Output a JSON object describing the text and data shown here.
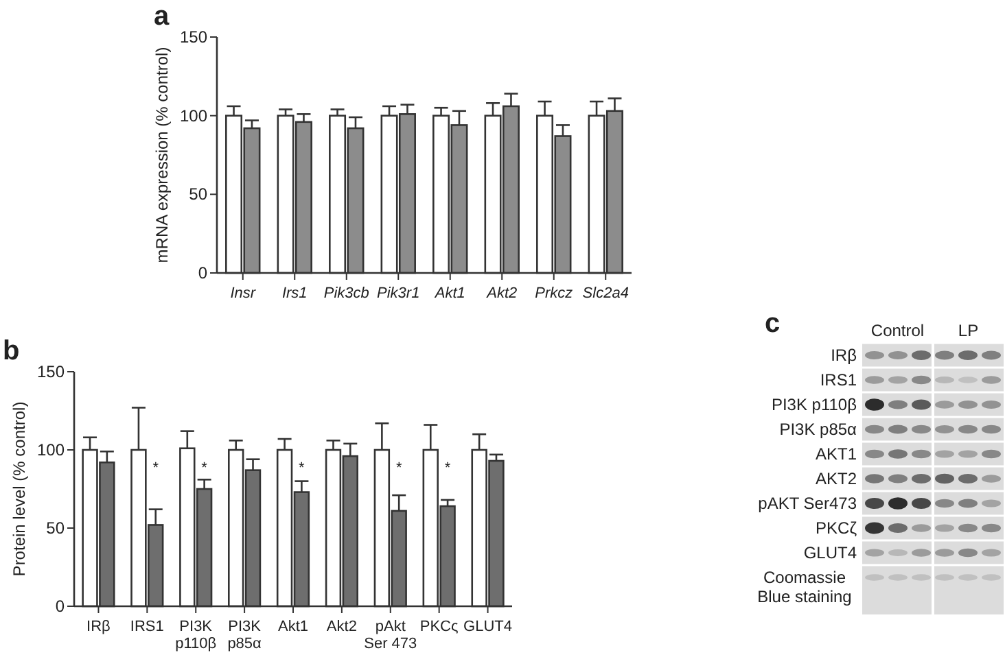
{
  "chart_data": [
    {
      "type": "bar",
      "title": "a",
      "ylabel": "mRNA expression (% control)",
      "categories": [
        "Insr",
        "Irs1",
        "Pik3cb",
        "Pik3r1",
        "Akt1",
        "Akt2",
        "Prkcz",
        "Slc2a4"
      ],
      "ylim": [
        0,
        150
      ],
      "yticks": [
        0,
        50,
        100,
        150
      ],
      "grid": false,
      "series": [
        {
          "color": "#ffffff",
          "values": [
            100,
            100,
            100,
            100,
            100,
            100,
            100,
            100
          ],
          "errors": [
            [
              100,
              106
            ],
            [
              100,
              104
            ],
            [
              100,
              104
            ],
            [
              100,
              106
            ],
            [
              100,
              105
            ],
            [
              100,
              108
            ],
            [
              100,
              109
            ],
            [
              100,
              109
            ]
          ]
        },
        {
          "color": "#8c8c8c",
          "values": [
            92,
            96,
            92,
            101,
            94,
            106,
            87,
            103
          ],
          "errors": [
            [
              92,
              97
            ],
            [
              96,
              101
            ],
            [
              92,
              99
            ],
            [
              101,
              107
            ],
            [
              94,
              103
            ],
            [
              106,
              114
            ],
            [
              87,
              94
            ],
            [
              103,
              111
            ]
          ]
        }
      ]
    },
    {
      "type": "bar",
      "title": "b",
      "ylabel": "Protein level (% control)",
      "categories": [
        "IRβ",
        "IRS1",
        "PI3K\np110β",
        "PI3K\np85α",
        "Akt1",
        "Akt2",
        "pAkt\nSer 473",
        "PKCς",
        "GLUT4"
      ],
      "ylim": [
        0,
        150
      ],
      "yticks": [
        0,
        50,
        100,
        150
      ],
      "grid": false,
      "series": [
        {
          "color": "#ffffff",
          "values": [
            100,
            100,
            101,
            100,
            100,
            100,
            100,
            100,
            100
          ],
          "errors": [
            [
              100,
              108
            ],
            [
              100,
              127
            ],
            [
              101,
              112
            ],
            [
              100,
              106
            ],
            [
              100,
              107
            ],
            [
              100,
              106
            ],
            [
              100,
              117
            ],
            [
              100,
              116
            ],
            [
              100,
              110
            ]
          ]
        },
        {
          "color": "#6e6e6e",
          "values": [
            92,
            52,
            75,
            87,
            73,
            96,
            61,
            64,
            93
          ],
          "errors": [
            [
              92,
              99
            ],
            [
              52,
              62
            ],
            [
              75,
              81
            ],
            [
              87,
              94
            ],
            [
              73,
              80
            ],
            [
              96,
              104
            ],
            [
              61,
              71
            ],
            [
              64,
              68
            ],
            [
              93,
              97
            ]
          ]
        }
      ],
      "annotations": [
        {
          "text": "*",
          "x": "IRS1",
          "y": 91
        },
        {
          "text": "*",
          "x": "PI3K\np110β",
          "y": 91
        },
        {
          "text": "*",
          "x": "Akt1",
          "y": 91
        },
        {
          "text": "*",
          "x": "pAkt\nSer 473",
          "y": 91
        },
        {
          "text": "*",
          "x": "PKCς",
          "y": 91
        }
      ]
    },
    {
      "type": "other",
      "title": "c",
      "categories": [
        "Control",
        "LP"
      ],
      "y_categories": [
        "IRβ",
        "IRS1",
        "PI3K p110β",
        "PI3K p85α",
        "AKT1",
        "AKT2",
        "pAKT Ser473",
        "PKCζ",
        "GLUT4",
        "Coomassie\nBlue staining"
      ]
    }
  ]
}
